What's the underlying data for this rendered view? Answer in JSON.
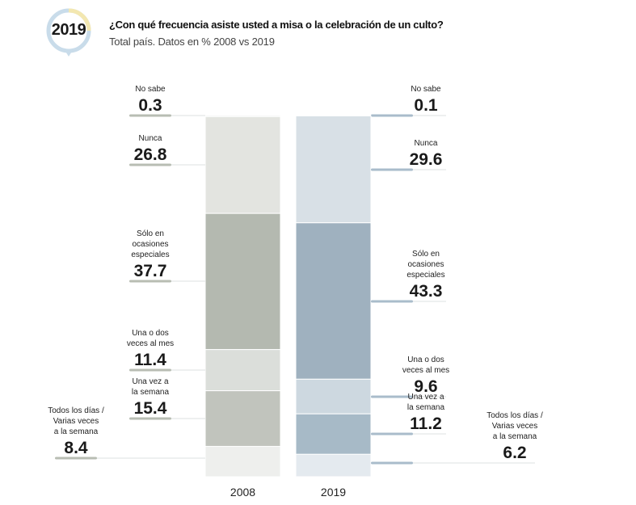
{
  "header": {
    "badge_year": "2019",
    "title": "¿Con qué frecuencia asiste usted a misa o la celebración de un culto?",
    "subtitle": "Total país. Datos en % 2008 vs 2019"
  },
  "colors": {
    "badge_ring": "#c9dcea",
    "badge_ring_accent": "#f3e7b0",
    "leader_2008": "#b8bdb3",
    "leader_2019": "#a9bccb"
  },
  "chart_data": {
    "type": "bar",
    "stacked": true,
    "categories": [
      "2008",
      "2019"
    ],
    "series": [
      {
        "name": "No sabe",
        "label_lines": [
          "No sabe"
        ],
        "values": [
          0.3,
          0.1
        ],
        "colors": [
          "#e7e8e4",
          "#d9e0e6"
        ]
      },
      {
        "name": "Nunca",
        "label_lines": [
          "Nunca"
        ],
        "values": [
          26.8,
          29.6
        ],
        "colors": [
          "#e3e4e0",
          "#d8e0e6"
        ]
      },
      {
        "name": "Sólo en ocasiones especiales",
        "label_lines": [
          "Sólo en",
          "ocasiones",
          "especiales"
        ],
        "values": [
          37.7,
          43.3
        ],
        "colors": [
          "#b4b9b0",
          "#9fb1bf"
        ]
      },
      {
        "name": "Una o dos veces al mes",
        "label_lines": [
          "Una o dos",
          "veces al  mes"
        ],
        "values": [
          11.4,
          9.6
        ],
        "colors": [
          "#dbdeda",
          "#cdd8e0"
        ]
      },
      {
        "name": "Una vez a la semana",
        "label_lines": [
          "Una vez a",
          "la semana"
        ],
        "values": [
          15.4,
          11.2
        ],
        "colors": [
          "#c1c4bd",
          "#a7bac7"
        ]
      },
      {
        "name": "Todos los días / Varias veces a la semana",
        "label_lines": [
          "Todos los días /",
          "Varias veces",
          "a la semana"
        ],
        "values": [
          8.4,
          6.2
        ],
        "colors": [
          "#eeefed",
          "#e4eaef"
        ]
      }
    ]
  }
}
